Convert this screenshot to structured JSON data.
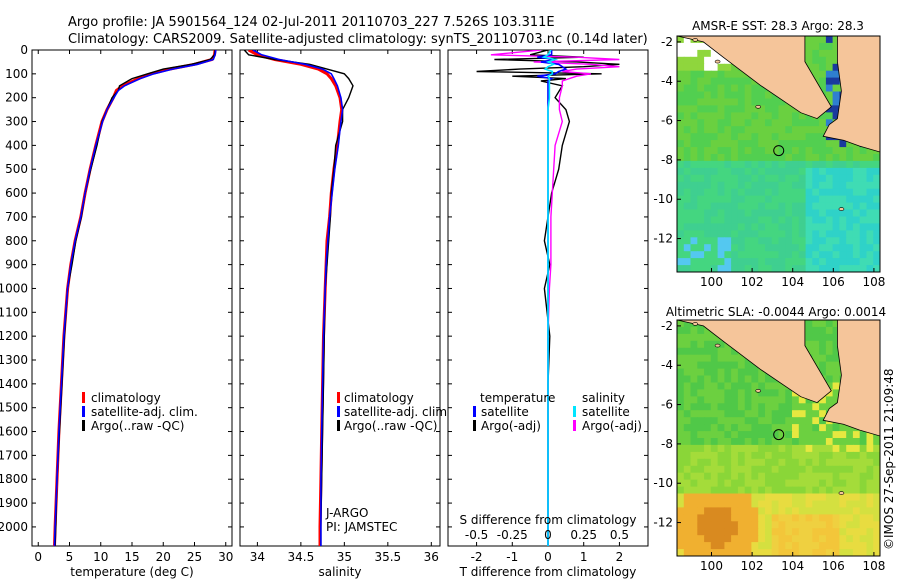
{
  "header": {
    "line1": "Argo profile: JA 5901564_124 02-Jul-2011 20110703_227 7.526S 103.311E",
    "line2": "Climatology: CARS2009. Satellite-adjusted climatology: synTS_20110703.nc (0.14d later)"
  },
  "credit": "©IMOS 27-Sep-2011 21:09:48",
  "colors": {
    "clim": "#ff0000",
    "sat": "#0000ff",
    "argo": "#000000",
    "sat_s": "#00e5ff",
    "argo_s": "#ff00ff",
    "land": "#f5c59a"
  },
  "chart_data": [
    {
      "type": "line",
      "id": "temperature",
      "xlabel": "temperature (deg C)",
      "xlim": [
        -1,
        31
      ],
      "ylim": [
        0,
        2080
      ],
      "xticks": [
        0,
        5,
        10,
        15,
        20,
        25,
        30
      ],
      "yticks": [
        0,
        100,
        200,
        300,
        400,
        500,
        600,
        700,
        800,
        900,
        1000,
        1100,
        1200,
        1300,
        1400,
        1500,
        1600,
        1700,
        1800,
        1900,
        2000
      ],
      "legend": [
        "climatology",
        "satellite-adj. clim.",
        "Argo(..raw -QC)"
      ],
      "depth": [
        0,
        20,
        40,
        60,
        80,
        100,
        120,
        150,
        170,
        200,
        250,
        300,
        400,
        500,
        600,
        700,
        800,
        900,
        1000,
        1200,
        1400,
        1600,
        1800,
        2000,
        2080
      ],
      "series": [
        {
          "name": "climatology",
          "values": [
            28.3,
            28.2,
            27.8,
            25.0,
            21.0,
            18.0,
            16.0,
            13.5,
            12.5,
            12.0,
            11.0,
            10.2,
            9.2,
            8.3,
            7.5,
            6.8,
            5.9,
            5.2,
            4.7,
            4.1,
            3.7,
            3.3,
            3.0,
            2.7,
            2.6
          ]
        },
        {
          "name": "satellite-adj. clim.",
          "values": [
            28.4,
            28.3,
            28.0,
            25.5,
            21.5,
            18.5,
            16.3,
            13.8,
            12.8,
            12.1,
            11.0,
            10.3,
            9.2,
            8.3,
            7.5,
            6.8,
            5.9,
            5.2,
            4.7,
            4.1,
            3.7,
            3.3,
            3.0,
            2.7,
            2.6
          ]
        },
        {
          "name": "Argo(..raw -QC)",
          "values": [
            28.3,
            28.2,
            27.5,
            24.5,
            20.0,
            17.5,
            15.0,
            13.0,
            12.8,
            11.8,
            11.0,
            10.2,
            9.4,
            8.4,
            7.5,
            6.9,
            6.0,
            5.4,
            4.7,
            4.2,
            3.8,
            3.4,
            3.0,
            2.8,
            2.7
          ]
        }
      ]
    },
    {
      "type": "line",
      "id": "salinity",
      "xlabel": "salinity",
      "xlim": [
        33.8,
        36.1
      ],
      "ylim": [
        0,
        2080
      ],
      "xticks": [
        34,
        34.5,
        35,
        35.5,
        36
      ],
      "legend": [
        "climatology",
        "satellite-adj. clim.",
        "Argo(..raw -QC)"
      ],
      "annotation": [
        "J-ARGO",
        "PI: JAMSTEC"
      ],
      "depth": [
        0,
        20,
        40,
        60,
        80,
        100,
        120,
        150,
        200,
        250,
        300,
        400,
        500,
        600,
        700,
        800,
        900,
        1000,
        1200,
        1400,
        1600,
        1800,
        2000,
        2080
      ],
      "series": [
        {
          "name": "climatology",
          "values": [
            33.9,
            34.0,
            34.2,
            34.5,
            34.7,
            34.8,
            34.85,
            34.9,
            34.95,
            34.97,
            34.95,
            34.92,
            34.88,
            34.85,
            34.83,
            34.8,
            34.79,
            34.78,
            34.76,
            34.75,
            34.74,
            34.73,
            34.72,
            34.72
          ]
        },
        {
          "name": "satellite-adj. clim.",
          "values": [
            33.95,
            34.05,
            34.25,
            34.55,
            34.75,
            34.85,
            34.88,
            34.92,
            34.96,
            34.98,
            34.96,
            34.93,
            34.89,
            34.86,
            34.83,
            34.81,
            34.79,
            34.78,
            34.76,
            34.75,
            34.74,
            34.73,
            34.73,
            34.73
          ]
        },
        {
          "name": "Argo(..raw -QC)",
          "values": [
            33.85,
            33.9,
            34.2,
            34.6,
            34.8,
            35.0,
            35.05,
            35.1,
            35.05,
            34.98,
            34.98,
            34.9,
            34.88,
            34.85,
            34.84,
            34.82,
            34.8,
            34.78,
            34.77,
            34.76,
            34.75,
            34.74,
            34.73,
            34.73
          ]
        }
      ]
    },
    {
      "type": "line",
      "id": "difference",
      "xlabel": "T difference from climatology",
      "xlabel_top": "S difference from climatology",
      "xlim": [
        -2.8,
        2.8
      ],
      "ylim": [
        0,
        2080
      ],
      "xticks": [
        -2,
        -1,
        0,
        1,
        2
      ],
      "xticks_s": [
        -0.5,
        -0.25,
        0,
        0.25,
        0.5
      ],
      "xtick_labels_s": [
        "-0.5",
        "-0.25",
        "0",
        "0.25",
        "0.5"
      ],
      "legend_titles": [
        "temperature",
        "salinity"
      ],
      "legend": [
        "satellite",
        "Argo(-adj)",
        "satellite",
        "Argo(-adj)"
      ],
      "depth": [
        0,
        20,
        30,
        40,
        50,
        60,
        70,
        80,
        90,
        100,
        110,
        120,
        130,
        150,
        200,
        250,
        300,
        400,
        500,
        600,
        700,
        800,
        900,
        1000,
        1200,
        1400,
        1600,
        1800,
        2000,
        2080
      ],
      "series": [
        {
          "name": "T satellite",
          "values": [
            0.1,
            0.1,
            -0.3,
            0.2,
            -0.2,
            0.3,
            0.4,
            0.5,
            0.3,
            0.2,
            -0.3,
            0.1,
            0.0,
            0.0,
            0.0,
            0.0,
            0.0,
            0.0,
            0.0,
            0.0,
            0.0,
            0.0,
            0.0,
            0.0,
            0.0,
            0.0,
            0.0,
            0.0,
            0.0,
            0.0
          ]
        },
        {
          "name": "T Argo(-adj)",
          "values": [
            0.0,
            -0.5,
            1.0,
            -1.5,
            0.8,
            2.0,
            1.0,
            -0.8,
            -2.0,
            1.5,
            -1.0,
            0.5,
            -0.2,
            0.4,
            0.2,
            0.5,
            0.6,
            0.4,
            0.3,
            0.1,
            0.0,
            -0.1,
            0.05,
            -0.1,
            0.05,
            0.0,
            0.0,
            0.0,
            0.0,
            0.0
          ]
        },
        {
          "name": "S satellite",
          "values": [
            0.02,
            0.0,
            -0.03,
            0.05,
            0.0,
            0.04,
            0.0,
            -0.02,
            0.03,
            0.03,
            0.0,
            0.01,
            0.01,
            0.01,
            0.01,
            0.0,
            0.0,
            0.0,
            0.0,
            0.0,
            0.0,
            0.0,
            0.0,
            0.0,
            0.0,
            0.0,
            0.0,
            0.0,
            0.0,
            0.0
          ]
        },
        {
          "name": "S Argo(-adj)",
          "values": [
            -0.05,
            -0.4,
            0.2,
            0.5,
            -0.1,
            0.3,
            0.5,
            0.2,
            0.1,
            0.3,
            0.2,
            0.15,
            0.1,
            0.1,
            0.08,
            0.08,
            0.1,
            0.05,
            0.04,
            0.03,
            0.02,
            0.02,
            0.02,
            0.01,
            0.0,
            0.0,
            0.0,
            0.0,
            0.0,
            0.0
          ]
        }
      ]
    },
    {
      "type": "heatmap",
      "id": "sst-map",
      "title": "AMSR-E SST: 28.3 Argo: 28.3",
      "xlim": [
        98.3,
        108.3
      ],
      "ylim": [
        -13.7,
        -1.7
      ],
      "xticks": [
        100,
        102,
        104,
        106,
        108
      ],
      "yticks": [
        -2,
        -4,
        -6,
        -8,
        -10,
        -12
      ],
      "argo_position": [
        103.311,
        -7.526
      ]
    },
    {
      "type": "heatmap",
      "id": "sla-map",
      "title": "Altimetric SLA: -0.0044 Argo: 0.0014",
      "xlim": [
        98.3,
        108.3
      ],
      "ylim": [
        -13.7,
        -1.7
      ],
      "xticks": [
        100,
        102,
        104,
        106,
        108
      ],
      "yticks": [
        -2,
        -4,
        -6,
        -8,
        -10,
        -12
      ],
      "argo_position": [
        103.311,
        -7.526
      ]
    }
  ]
}
